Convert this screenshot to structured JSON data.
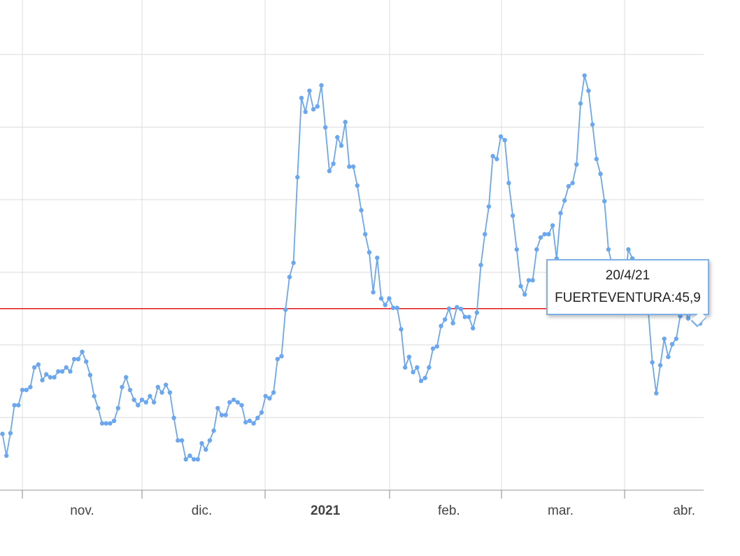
{
  "chart_data": {
    "type": "line",
    "series": [
      {
        "name": "FUERTEVENTURA",
        "color": "#6aa7f0",
        "values": [
          15.5,
          9.5,
          15.7,
          23.4,
          23.4,
          27.6,
          27.6,
          28.4,
          33.8,
          34.6,
          30.3,
          31.9,
          31.1,
          31.1,
          32.7,
          32.7,
          33.8,
          32.7,
          36.1,
          36.1,
          38.1,
          35.4,
          31.7,
          25.9,
          22.6,
          18.4,
          18.4,
          18.4,
          19.1,
          22.6,
          28.4,
          31.1,
          27.6,
          24.9,
          23.4,
          24.9,
          24.2,
          25.9,
          24.2,
          28.4,
          26.9,
          29.0,
          26.9,
          19.9,
          13.7,
          13.7,
          8.5,
          9.5,
          8.5,
          8.5,
          12.9,
          11.2,
          13.7,
          16.4,
          22.6,
          20.7,
          20.7,
          24.2,
          24.9,
          24.2,
          23.4,
          18.7,
          19.1,
          18.4,
          19.9,
          21.4,
          25.9,
          25.3,
          26.9,
          36.1,
          36.9,
          49.7,
          58.7,
          62.6,
          86.2,
          108.0,
          104.2,
          110.0,
          104.9,
          105.7,
          111.5,
          99.9,
          87.9,
          89.9,
          97.2,
          94.9,
          101.4,
          89.1,
          89.1,
          83.9,
          77.1,
          70.5,
          65.5,
          54.5,
          64.0,
          52.8,
          51.0,
          52.8,
          50.2,
          50.2,
          44.3,
          33.8,
          36.7,
          32.5,
          33.8,
          30.1,
          30.9,
          33.8,
          39.0,
          39.6,
          45.2,
          47.0,
          50.0,
          46.0,
          50.4,
          49.9,
          47.7,
          47.7,
          44.6,
          48.9,
          62.0,
          70.5,
          78.1,
          92.0,
          91.2,
          97.4,
          96.4,
          84.6,
          75.6,
          66.3,
          56.2,
          53.9,
          57.8,
          57.8,
          66.3,
          69.6,
          70.5,
          70.5,
          72.9,
          63.8,
          76.3,
          79.8,
          83.7,
          84.6,
          89.7,
          106.5,
          114.2,
          110.0,
          100.7,
          91.2,
          87.1,
          79.6,
          66.3,
          61.8,
          58.0,
          52.2,
          56.0,
          66.3,
          63.8,
          58.0,
          52.2,
          50.2,
          49.3,
          35.2,
          26.7,
          34.4,
          41.7,
          36.7,
          40.2,
          41.7,
          47.9,
          50.2,
          47.3,
          49.3,
          50.2,
          45.9
        ]
      }
    ],
    "categories": [
      null,
      null,
      null,
      null,
      null,
      null,
      null,
      null,
      null,
      null,
      null,
      null,
      null,
      null,
      null,
      null,
      null,
      null,
      null,
      null,
      "nov.",
      null,
      null,
      null,
      null,
      null,
      null,
      null,
      null,
      null,
      null,
      null,
      null,
      null,
      null,
      null,
      null,
      null,
      null,
      null,
      null,
      null,
      null,
      null,
      null,
      null,
      null,
      null,
      null,
      null,
      "dic.",
      null,
      null,
      null,
      null,
      null,
      null,
      null,
      null,
      null,
      null,
      null,
      null,
      null,
      null,
      null,
      null,
      null,
      null,
      null,
      null,
      null,
      null,
      null,
      null,
      null,
      null,
      null,
      null,
      null,
      null,
      "2021",
      null,
      null,
      null,
      null,
      null,
      null,
      null,
      null,
      null,
      null,
      null,
      null,
      null,
      null,
      null,
      null,
      null,
      null,
      null,
      null,
      null,
      null,
      null,
      null,
      null,
      null,
      null,
      null,
      null,
      null,
      "feb.",
      null,
      null,
      null,
      null,
      null,
      null,
      null,
      null,
      null,
      null,
      null,
      null,
      null,
      null,
      null,
      null,
      null,
      null,
      null,
      null,
      null,
      null,
      null,
      null,
      null,
      null,
      null,
      "mar.",
      null,
      null,
      null,
      null,
      null,
      null,
      null,
      null,
      null,
      null,
      null,
      null,
      null,
      null,
      null,
      null,
      null,
      null,
      null,
      null,
      null,
      null,
      null,
      null,
      null,
      null,
      null,
      null,
      null,
      null,
      "abr.",
      null,
      null,
      null,
      null
    ],
    "ylim": [
      0,
      135
    ],
    "yticks": [
      0,
      20,
      40,
      60,
      80,
      100,
      120
    ],
    "grid": true,
    "reference_line": {
      "value": 50,
      "color": "#e0141a"
    },
    "tooltip": {
      "title": "20/4/21",
      "text": "FUERTEVENTURA:45,9"
    }
  }
}
